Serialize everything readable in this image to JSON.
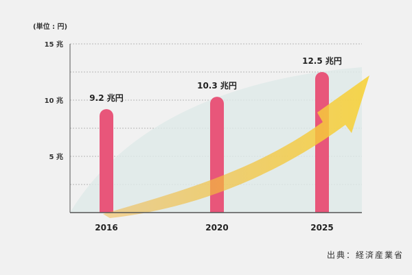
{
  "unit_label": "(単位 : 円)",
  "source": "出典：経済産業省",
  "colors": {
    "background": "#f1f1f1",
    "bar": "#e8567a",
    "arrow": "#f7d23a",
    "arrow_gradient_start": "#f0b23a",
    "area": "#dfeae8",
    "grid": "#b5b5b5",
    "axis": "#555555"
  },
  "chart_data": {
    "type": "bar",
    "categories": [
      "2016",
      "2020",
      "2025"
    ],
    "values": [
      9.2,
      10.3,
      12.5
    ],
    "data_labels": [
      "9.2 兆円",
      "10.3 兆円",
      "12.5 兆円"
    ],
    "yticks": [
      {
        "value": 5,
        "label": "5 兆"
      },
      {
        "value": 10,
        "label": "10 兆"
      },
      {
        "value": 15,
        "label": "15 兆"
      }
    ],
    "ylim": [
      0,
      15
    ],
    "grid": true,
    "decorations": [
      "rising-arrow",
      "growth-area"
    ]
  }
}
